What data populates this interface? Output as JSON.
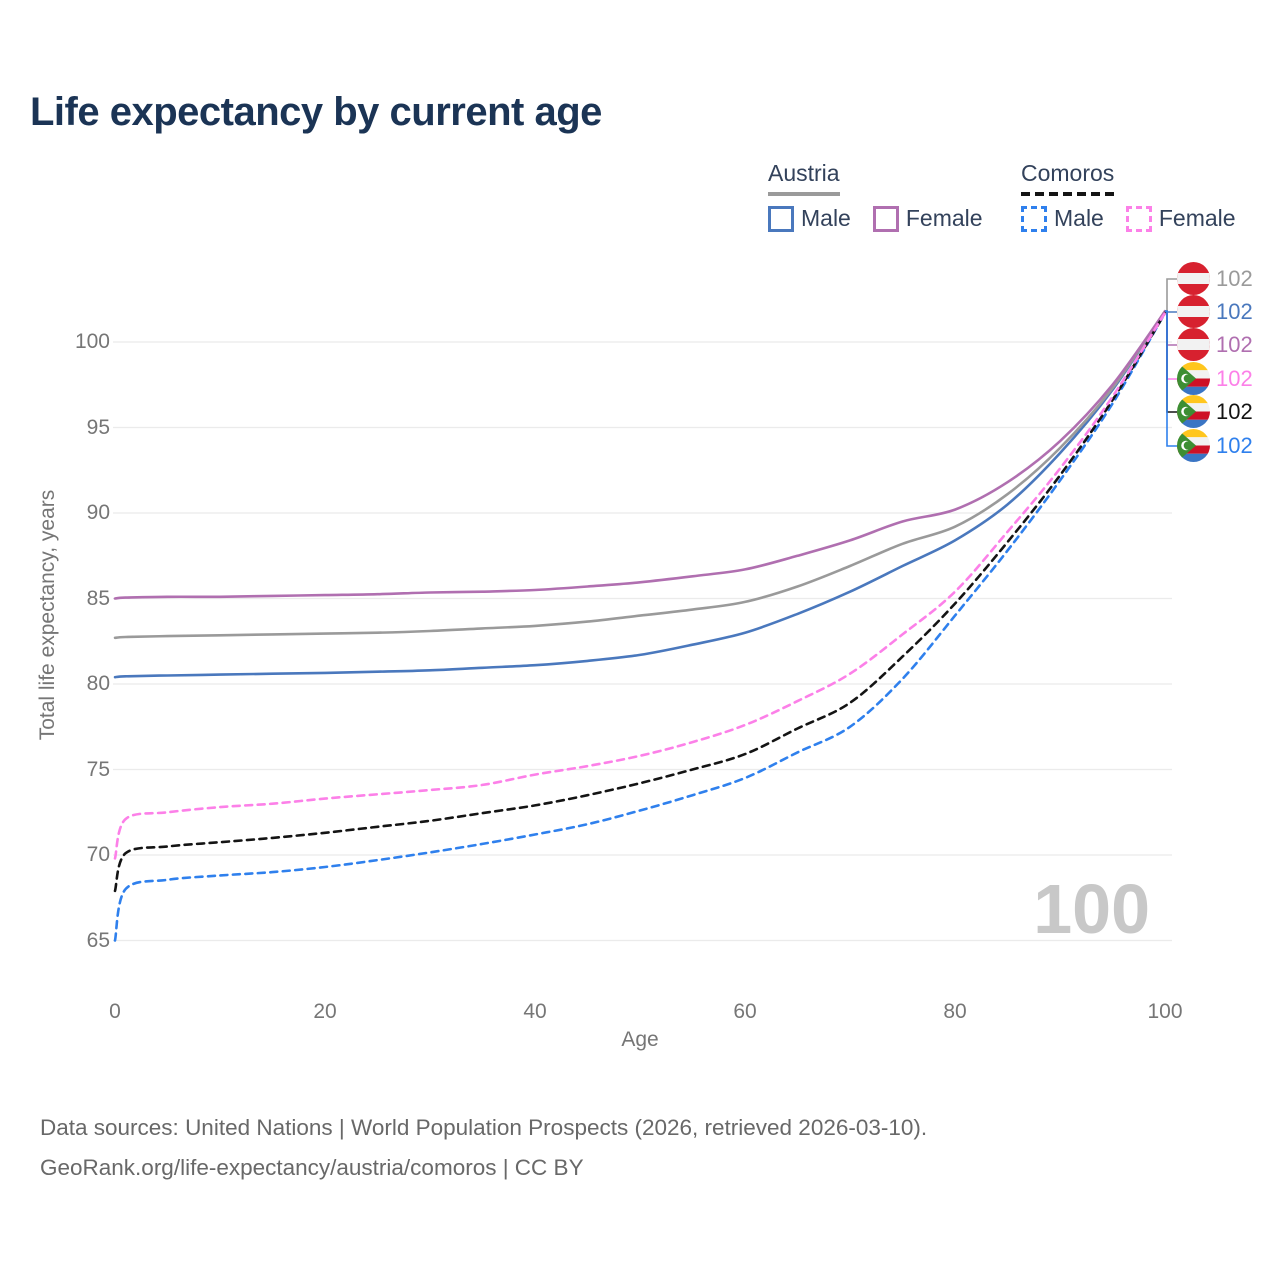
{
  "title": "Life expectancy by current age",
  "legend": {
    "groups": [
      {
        "country": "Austria",
        "line_style": "solid",
        "line_color": "#9a9a9a",
        "items": [
          {
            "label": "Male",
            "color": "#4a78bd",
            "style": "solid"
          },
          {
            "label": "Female",
            "color": "#b06fb0",
            "style": "solid"
          }
        ]
      },
      {
        "country": "Comoros",
        "line_style": "dashed",
        "line_color": "#141414",
        "items": [
          {
            "label": "Male",
            "color": "#2f80ed",
            "style": "dashed"
          },
          {
            "label": "Female",
            "color": "#fc80e8",
            "style": "dashed"
          }
        ]
      }
    ]
  },
  "chart_data": {
    "type": "line",
    "title": "Life expectancy by current age",
    "xlabel": "Age",
    "ylabel": "Total life expectancy, years",
    "x_ticks": [
      0,
      20,
      40,
      60,
      80,
      100
    ],
    "y_ticks": [
      65,
      70,
      75,
      80,
      85,
      90,
      95,
      100
    ],
    "xlim": [
      0,
      100
    ],
    "ylim": [
      63,
      103
    ],
    "grid": "horizontal",
    "legend_position": "top-right",
    "x": [
      0,
      1,
      5,
      10,
      15,
      20,
      25,
      30,
      35,
      40,
      45,
      50,
      55,
      60,
      65,
      70,
      75,
      80,
      85,
      90,
      95,
      100
    ],
    "series": [
      {
        "name": "Austria Male",
        "country": "Austria",
        "sex": "Male",
        "color": "#4a78bd",
        "dash": false,
        "values": [
          80.4,
          80.45,
          80.5,
          80.55,
          80.6,
          80.65,
          80.72,
          80.8,
          80.95,
          81.1,
          81.35,
          81.7,
          82.3,
          83.0,
          84.1,
          85.4,
          86.9,
          88.4,
          90.5,
          93.5,
          97.2,
          101.8
        ]
      },
      {
        "name": "Austria",
        "country": "Austria",
        "sex": "Both",
        "color": "#9a9a9a",
        "dash": false,
        "values": [
          82.7,
          82.75,
          82.8,
          82.85,
          82.9,
          82.95,
          83.0,
          83.1,
          83.25,
          83.4,
          83.65,
          84.0,
          84.35,
          84.8,
          85.7,
          86.9,
          88.2,
          89.2,
          91.1,
          93.8,
          97.3,
          101.8
        ]
      },
      {
        "name": "Austria Female",
        "country": "Austria",
        "sex": "Female",
        "color": "#b06fb0",
        "dash": false,
        "values": [
          85.0,
          85.05,
          85.1,
          85.1,
          85.15,
          85.2,
          85.25,
          85.35,
          85.4,
          85.5,
          85.7,
          85.95,
          86.3,
          86.7,
          87.5,
          88.4,
          89.5,
          90.2,
          91.8,
          94.2,
          97.5,
          101.8
        ]
      },
      {
        "name": "Comoros Male",
        "country": "Comoros",
        "sex": "Male",
        "color": "#2f80ed",
        "dash": true,
        "values": [
          65.0,
          68.0,
          68.55,
          68.8,
          69.0,
          69.3,
          69.7,
          70.15,
          70.65,
          71.2,
          71.8,
          72.6,
          73.5,
          74.5,
          76.0,
          77.5,
          80.3,
          84.0,
          87.8,
          91.9,
          96.4,
          101.7
        ]
      },
      {
        "name": "Comoros",
        "country": "Comoros",
        "sex": "Both",
        "color": "#141414",
        "dash": true,
        "values": [
          67.9,
          70.1,
          70.5,
          70.75,
          71.0,
          71.3,
          71.65,
          72.0,
          72.45,
          72.9,
          73.5,
          74.2,
          75.0,
          75.9,
          77.4,
          78.9,
          81.6,
          84.7,
          88.3,
          92.2,
          96.6,
          101.7
        ]
      },
      {
        "name": "Comoros Female",
        "country": "Comoros",
        "sex": "Female",
        "color": "#fc80e8",
        "dash": true,
        "values": [
          69.8,
          72.1,
          72.5,
          72.8,
          73.0,
          73.3,
          73.55,
          73.8,
          74.1,
          74.7,
          75.2,
          75.8,
          76.6,
          77.6,
          79.0,
          80.6,
          82.9,
          85.4,
          88.9,
          92.6,
          96.8,
          101.7
        ]
      }
    ],
    "end_labels": [
      {
        "value": "102",
        "country": "Austria",
        "series": "Austria",
        "color": "#9a9a9a"
      },
      {
        "value": "102",
        "country": "Austria",
        "series": "Austria Male",
        "color": "#4a78bd"
      },
      {
        "value": "102",
        "country": "Austria",
        "series": "Austria Female",
        "color": "#b06fb0"
      },
      {
        "value": "102",
        "country": "Comoros",
        "series": "Comoros Female",
        "color": "#fc80e8"
      },
      {
        "value": "102",
        "country": "Comoros",
        "series": "Comoros",
        "color": "#141414"
      },
      {
        "value": "102",
        "country": "Comoros",
        "series": "Comoros Male",
        "color": "#2f80ed"
      }
    ],
    "watermark": "100"
  },
  "footer": {
    "line1": "Data sources: United Nations | World Population Prospects (2026, retrieved 2026-03-10).",
    "line2": "GeoRank.org/life-expectancy/austria/comoros | CC BY"
  }
}
